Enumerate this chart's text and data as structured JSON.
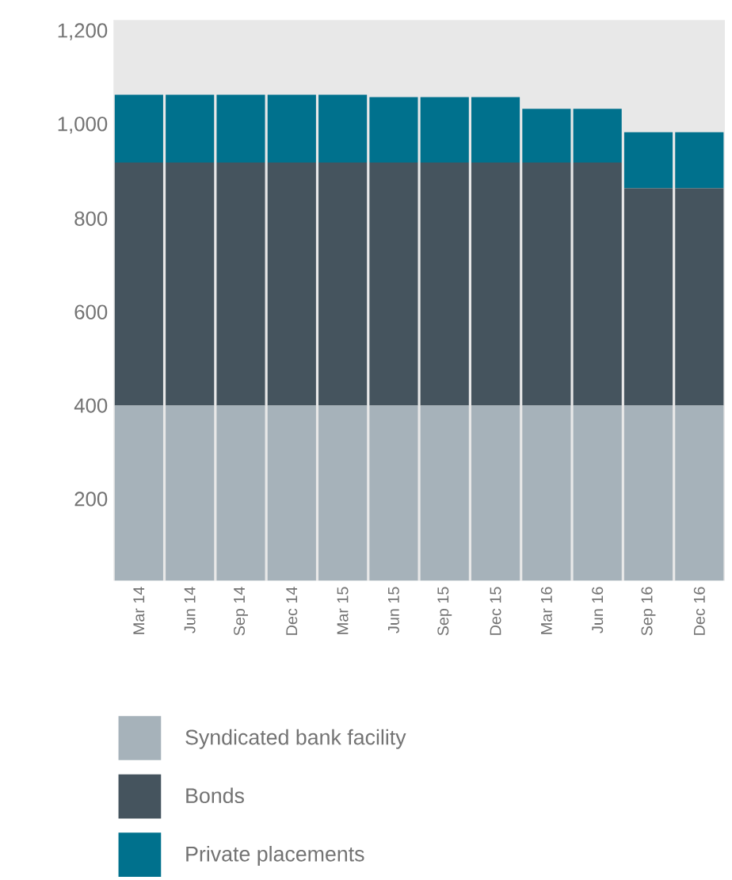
{
  "chart_data": {
    "type": "bar",
    "stacked": true,
    "categories": [
      "Mar 14",
      "Jun 14",
      "Sep 14",
      "Dec 14",
      "Mar 15",
      "Jun 15",
      "Sep 15",
      "Dec 15",
      "Mar 16",
      "Jun 16",
      "Sep 16",
      "Dec 16"
    ],
    "series": [
      {
        "name": "Syndicated bank facility",
        "color": "#a6b2ba",
        "values": [
          400,
          400,
          400,
          400,
          400,
          400,
          400,
          400,
          400,
          400,
          400,
          400
        ]
      },
      {
        "name": "Bonds",
        "color": "#45545e",
        "values": [
          520,
          520,
          520,
          520,
          520,
          520,
          520,
          520,
          520,
          520,
          465,
          465
        ]
      },
      {
        "name": "Private placements",
        "color": "#00718d",
        "values": [
          145,
          145,
          145,
          145,
          145,
          140,
          140,
          140,
          115,
          115,
          120,
          120
        ]
      }
    ],
    "ylim": [
      25,
      1225
    ],
    "yticks": [
      200,
      400,
      600,
      800,
      {
        "value": 1000,
        "label": "1,000"
      },
      {
        "value": 1200,
        "label": "1,200"
      }
    ],
    "legend": "bottom"
  }
}
